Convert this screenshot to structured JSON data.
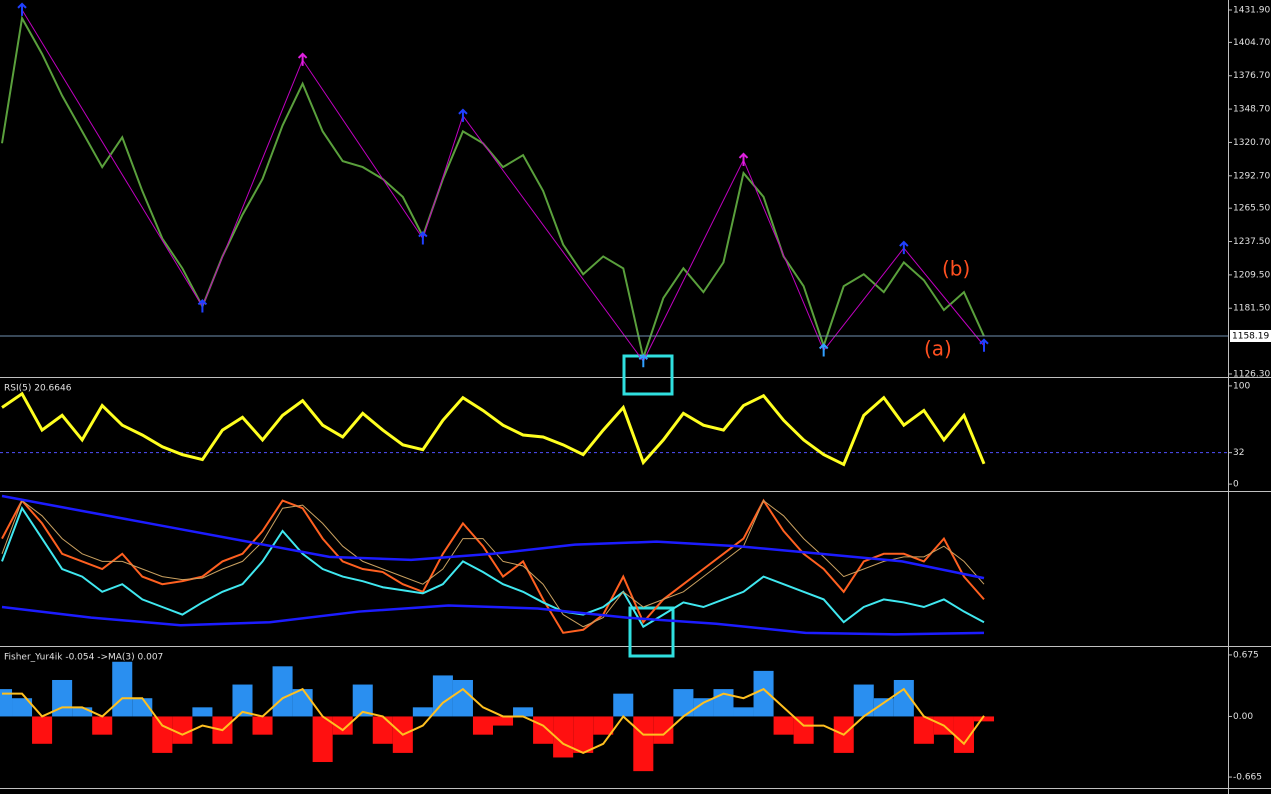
{
  "chart_data": [
    {
      "type": "price",
      "ylim": [
        1124.6,
        1440.3
      ],
      "yticks": [
        {
          "value": 1431.9,
          "label": "1431.90"
        },
        {
          "value": 1404.7,
          "label": "1404.70"
        },
        {
          "value": 1376.7,
          "label": "1376.70"
        },
        {
          "value": 1348.7,
          "label": "1348.70"
        },
        {
          "value": 1320.7,
          "label": "1320.70"
        },
        {
          "value": 1292.7,
          "label": "1292.70"
        },
        {
          "value": 1265.5,
          "label": "1265.50"
        },
        {
          "value": 1237.5,
          "label": "1237.50"
        },
        {
          "value": 1209.5,
          "label": "1209.50"
        },
        {
          "value": 1181.5,
          "label": "1181.50"
        },
        {
          "value": 1126.3,
          "label": "1126.30"
        }
      ],
      "current_price": 1158.19,
      "series": [
        {
          "color": "#5aa03c",
          "values": [
            1320,
            1425,
            1395,
            1360,
            1330,
            1300,
            1325,
            1280,
            1240,
            1215,
            1183,
            1225,
            1260,
            1290,
            1335,
            1370,
            1330,
            1305,
            1300,
            1290,
            1275,
            1242,
            1290,
            1330,
            1320,
            1300,
            1310,
            1280,
            1235,
            1210,
            1225,
            1215,
            1140,
            1190,
            1215,
            1195,
            1220,
            1295,
            1275,
            1225,
            1200,
            1150,
            1200,
            1210,
            1195,
            1220,
            1205,
            1180,
            1195,
            1158
          ]
        }
      ],
      "zigzag": {
        "color": "#c000c0",
        "x": [
          1,
          10,
          15,
          21,
          23,
          32,
          37,
          41,
          45,
          49
        ],
        "values": [
          1432,
          1183,
          1390,
          1240,
          1343,
          1137,
          1306,
          1146,
          1232,
          1150
        ],
        "marker_colors": [
          "#2040ff",
          "#2040ff",
          "#e020e0",
          "#2040ff",
          "#2040ff",
          "#30a0ff",
          "#e020e0",
          "#30a0ff",
          "#2040ff",
          "#2040ff"
        ]
      },
      "annotations": [
        "(a)",
        "(b)"
      ]
    },
    {
      "type": "line",
      "title": "RSI(5) 20.6646",
      "ylim": [
        -6,
        106
      ],
      "yticks": [
        0,
        32,
        100
      ],
      "level": 32,
      "series": [
        {
          "color": "#ffff20",
          "values": [
            78,
            92,
            55,
            70,
            45,
            80,
            60,
            50,
            38,
            30,
            25,
            55,
            68,
            45,
            70,
            85,
            60,
            48,
            72,
            55,
            40,
            35,
            65,
            88,
            75,
            60,
            50,
            48,
            40,
            30,
            55,
            78,
            22,
            45,
            72,
            60,
            55,
            80,
            90,
            65,
            45,
            30,
            20,
            70,
            88,
            60,
            75,
            45,
            70,
            20.6646
          ]
        }
      ]
    },
    {
      "type": "line",
      "ylim": [
        0,
        100
      ],
      "series": [
        {
          "color": "#ff6020",
          "values": [
            70,
            95,
            80,
            60,
            55,
            50,
            60,
            45,
            40,
            42,
            45,
            55,
            60,
            75,
            95,
            90,
            70,
            55,
            50,
            48,
            40,
            35,
            60,
            80,
            65,
            45,
            55,
            30,
            8,
            10,
            20,
            45,
            15,
            30,
            40,
            50,
            60,
            70,
            95,
            75,
            60,
            50,
            35,
            55,
            60,
            60,
            55,
            70,
            45,
            30
          ]
        },
        {
          "color": "#40e8f0",
          "values": [
            55,
            90,
            70,
            50,
            45,
            35,
            40,
            30,
            25,
            20,
            28,
            35,
            40,
            55,
            75,
            60,
            50,
            45,
            42,
            38,
            36,
            34,
            40,
            55,
            48,
            40,
            35,
            28,
            22,
            20,
            25,
            35,
            12,
            20,
            28,
            25,
            30,
            35,
            45,
            40,
            35,
            30,
            15,
            25,
            30,
            28,
            25,
            30,
            22,
            15
          ]
        },
        {
          "color": "#c8a060",
          "values": [
            60,
            95,
            85,
            70,
            60,
            55,
            55,
            50,
            45,
            43,
            44,
            50,
            55,
            68,
            90,
            92,
            80,
            65,
            55,
            50,
            45,
            40,
            50,
            70,
            70,
            55,
            52,
            40,
            20,
            12,
            18,
            35,
            25,
            30,
            35,
            45,
            55,
            65,
            95,
            85,
            70,
            58,
            45,
            50,
            55,
            58,
            58,
            65,
            55,
            40
          ]
        },
        {
          "color": "#1c1cff",
          "values": [
            98,
            88,
            78,
            68,
            58,
            56,
            60,
            66,
            68,
            65,
            60,
            55,
            44
          ]
        },
        {
          "color": "#1c1cff",
          "values": [
            25,
            18,
            13,
            15,
            22,
            26,
            24,
            18,
            14,
            8,
            7,
            8
          ]
        }
      ]
    },
    {
      "type": "fisher",
      "title": "Fisher_Yur4ik -0.054 ->MA(3) 0.007",
      "ylim": [
        -0.774,
        0.729
      ],
      "yticks": [
        0.675,
        {
          "value": 0,
          "label": "0.00"
        },
        -0.665
      ],
      "series": [
        {
          "color": "#2a8ff0",
          "negative_color": "#ff1010",
          "values": [
            0.3,
            0.2,
            -0.3,
            0.4,
            0.1,
            -0.2,
            0.6,
            0.2,
            -0.4,
            -0.3,
            0.1,
            -0.3,
            0.35,
            -0.2,
            0.55,
            0.3,
            -0.5,
            -0.2,
            0.35,
            -0.3,
            -0.4,
            0.1,
            0.45,
            0.4,
            -0.2,
            -0.1,
            0.1,
            -0.3,
            -0.45,
            -0.4,
            -0.2,
            0.25,
            -0.6,
            -0.3,
            0.3,
            0.2,
            0.3,
            0.1,
            0.5,
            -0.2,
            -0.3,
            0.0,
            -0.4,
            0.35,
            0.2,
            0.4,
            -0.3,
            -0.2,
            -0.4,
            -0.054
          ]
        },
        {
          "color": "#ffc020",
          "values": [
            0.25,
            0.25,
            0,
            0.1,
            0.1,
            0,
            0.2,
            0.2,
            -0.1,
            -0.2,
            -0.1,
            -0.15,
            0.05,
            0.0,
            0.2,
            0.3,
            0,
            -0.15,
            0.05,
            0,
            -0.2,
            -0.1,
            0.15,
            0.3,
            0.1,
            0,
            0,
            -0.1,
            -0.3,
            -0.4,
            -0.3,
            0,
            -0.2,
            -0.2,
            0,
            0.15,
            0.25,
            0.2,
            0.3,
            0.1,
            -0.1,
            -0.1,
            -0.2,
            0,
            0.15,
            0.3,
            0,
            -0.1,
            -0.3,
            0.007
          ]
        }
      ]
    }
  ]
}
